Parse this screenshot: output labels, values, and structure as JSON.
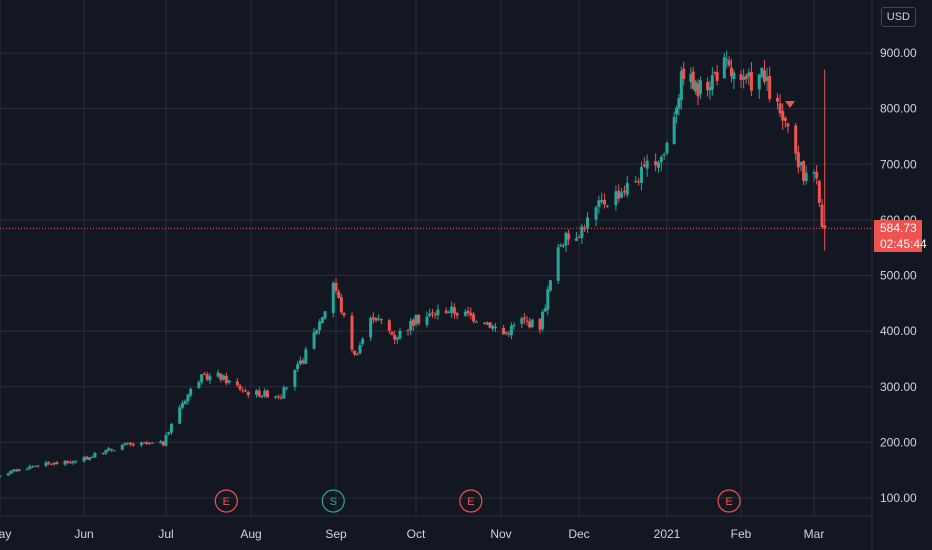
{
  "currency": "USD",
  "last_price": {
    "value": 584.73,
    "label": "584.73",
    "countdown": "02:45:44",
    "color": "#ef5350"
  },
  "colors": {
    "up": "#26a69a",
    "down": "#ef5350",
    "background": "#131722",
    "grid": "#2a2e39",
    "text": "#d1d4dc"
  },
  "events": [
    {
      "letter": "E",
      "month_pos": "Jul-23",
      "type": "earnings"
    },
    {
      "letter": "S",
      "month_pos": "Aug-31",
      "type": "split"
    },
    {
      "letter": "E",
      "month_pos": "Oct-21",
      "type": "earnings"
    },
    {
      "letter": "E",
      "month_pos": "Jan-27",
      "type": "earnings"
    }
  ],
  "chart_data": {
    "type": "candlestick",
    "title": "",
    "xlabel": "",
    "ylabel": "",
    "ylim": [
      40,
      950
    ],
    "y_ticks": [
      100,
      200,
      300,
      400,
      500,
      600,
      700,
      800,
      900
    ],
    "y_tick_labels": [
      "100.00",
      "200.00",
      "300.00",
      "400.00",
      "500.00",
      "600.00",
      "700.00",
      "800.00",
      "900.00"
    ],
    "x_tick_labels": [
      "May",
      "Jun",
      "Jul",
      "Aug",
      "Sep",
      "Oct",
      "Nov",
      "Dec",
      "2021",
      "Feb",
      "Mar"
    ],
    "grid": true,
    "price_axis": "right",
    "price_path": [
      [
        "2020-04-29",
        140
      ],
      [
        "2020-05-15",
        160
      ],
      [
        "2020-05-29",
        165
      ],
      [
        "2020-06-15",
        195
      ],
      [
        "2020-06-30",
        198
      ],
      [
        "2020-07-06",
        265
      ],
      [
        "2020-07-13",
        315
      ],
      [
        "2020-07-20",
        320
      ],
      [
        "2020-07-31",
        290
      ],
      [
        "2020-08-12",
        285
      ],
      [
        "2020-08-20",
        350
      ],
      [
        "2020-08-28",
        440
      ],
      [
        "2020-08-31",
        490
      ],
      [
        "2020-09-08",
        355
      ],
      [
        "2020-09-15",
        430
      ],
      [
        "2020-09-23",
        390
      ],
      [
        "2020-10-01",
        420
      ],
      [
        "2020-10-12",
        440
      ],
      [
        "2020-10-26",
        420
      ],
      [
        "2020-11-02",
        395
      ],
      [
        "2020-11-09",
        420
      ],
      [
        "2020-11-16",
        410
      ],
      [
        "2020-11-20",
        490
      ],
      [
        "2020-11-24",
        560
      ],
      [
        "2020-12-01",
        580
      ],
      [
        "2020-12-09",
        630
      ],
      [
        "2020-12-18",
        660
      ],
      [
        "2020-12-31",
        720
      ],
      [
        "2021-01-08",
        870
      ],
      [
        "2021-01-14",
        830
      ],
      [
        "2021-01-25",
        880
      ],
      [
        "2021-02-01",
        840
      ],
      [
        "2021-02-09",
        860
      ],
      [
        "2021-02-16",
        790
      ],
      [
        "2021-02-22",
        715
      ],
      [
        "2021-02-25",
        680
      ],
      [
        "2021-03-01",
        700
      ],
      [
        "2021-03-04",
        600
      ],
      [
        "2021-03-05",
        584.73
      ]
    ],
    "notable_wick": {
      "date": "2021-03-05",
      "high": 870,
      "low": 545
    }
  }
}
